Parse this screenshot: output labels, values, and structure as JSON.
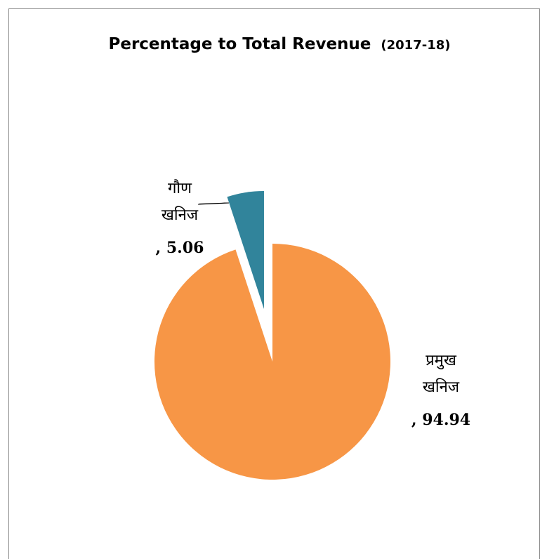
{
  "chart_data": {
    "type": "pie",
    "title": "Percentage to Total Revenue",
    "subtitle": "(2017-18)",
    "categories": [
      "प्रमुख खनिज",
      "गौण खनिज"
    ],
    "values": [
      94.94,
      5.06
    ],
    "value_labels": [
      ", 94.94",
      ", 5.06"
    ],
    "colors": [
      "#f79646",
      "#31849b"
    ],
    "exploded": [
      false,
      true
    ]
  }
}
